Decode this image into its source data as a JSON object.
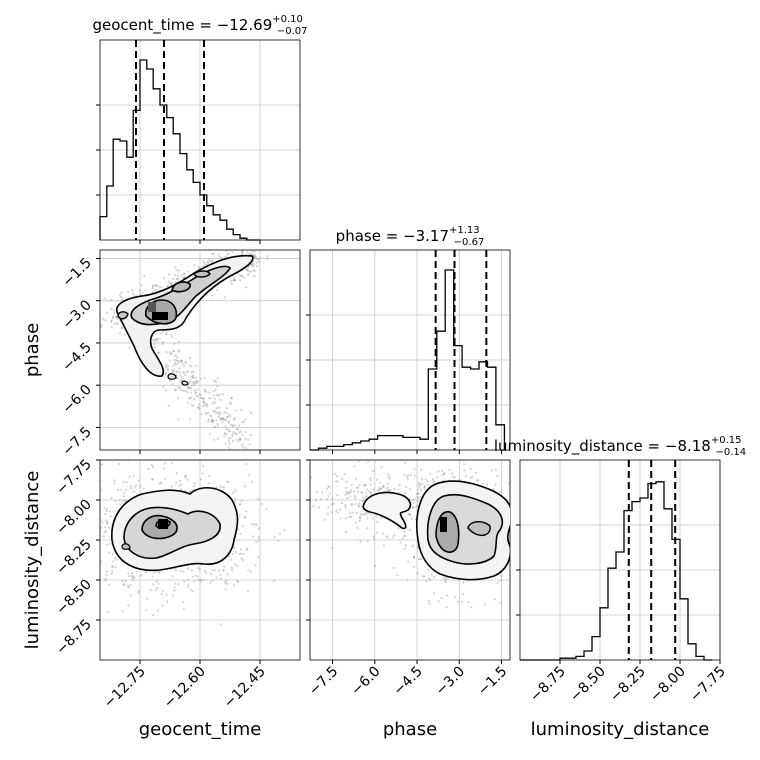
{
  "chart_data": {
    "type": "corner",
    "parameters": [
      "geocent_time",
      "phase",
      "luminosity_distance"
    ],
    "axis_labels": {
      "geocent_time": "geocent_time",
      "phase": "phase",
      "luminosity_distance": "luminosity_distance"
    },
    "ranges": {
      "geocent_time": [
        -12.85,
        -12.35
      ],
      "phase": [
        -8.3,
        -1.2
      ],
      "luminosity_distance": [
        -9.0,
        -7.75
      ]
    },
    "ticks": {
      "geocent_time": {
        "values": [
          -12.75,
          -12.6,
          -12.45
        ],
        "labels": [
          "−12.75",
          "−12.60",
          "−12.45"
        ]
      },
      "phase": {
        "values": [
          -7.5,
          -6.0,
          -4.5,
          -3.0,
          -1.5
        ],
        "labels": [
          "−7.5",
          "−6.0",
          "−4.5",
          "−3.0",
          "−1.5"
        ]
      },
      "luminosity_distance": {
        "values": [
          -8.75,
          -8.5,
          -8.25,
          -8.0,
          -7.75
        ],
        "labels": [
          "−8.75",
          "−8.50",
          "−8.25",
          "−8.00",
          "−7.75"
        ]
      }
    },
    "y_tick_labels": {
      "phase": {
        "values": [
          -1.5,
          -3.0,
          -4.5,
          -6.0,
          -7.5
        ],
        "labels": [
          "−1.5",
          "−3.0",
          "−4.5",
          "−6.0",
          "−7.5"
        ]
      },
      "luminosity_distance": {
        "values": [
          -7.75,
          -8.0,
          -8.25,
          -8.5,
          -8.75
        ],
        "labels": [
          "−7.75",
          "−8.00",
          "−8.25",
          "−8.50",
          "−8.75"
        ]
      }
    },
    "titles": [
      {
        "param": "geocent_time",
        "prefix": "geocent_time = −12.69",
        "plus": "+0.10",
        "minus": "−0.07"
      },
      {
        "param": "phase",
        "prefix": "phase = −3.17",
        "plus": "+1.13",
        "minus": "−0.67"
      },
      {
        "param": "luminosity_distance",
        "prefix": "luminosity_distance = −8.18",
        "plus": "+0.15",
        "minus": "−0.14"
      }
    ],
    "quantiles": {
      "geocent_time": [
        -12.76,
        -12.69,
        -12.59
      ],
      "phase": [
        -3.84,
        -3.17,
        -2.04
      ],
      "luminosity_distance": [
        -8.32,
        -8.18,
        -8.03
      ]
    },
    "histograms": {
      "geocent_time": {
        "edges": [
          -12.85,
          -12.833,
          -12.817,
          -12.8,
          -12.783,
          -12.767,
          -12.75,
          -12.733,
          -12.717,
          -12.7,
          -12.683,
          -12.667,
          -12.65,
          -12.633,
          -12.617,
          -12.6,
          -12.583,
          -12.567,
          -12.55,
          -12.533,
          -12.517,
          -12.5,
          -12.483,
          -12.467,
          -12.45
        ],
        "counts": [
          0.13,
          0.3,
          0.56,
          0.55,
          0.46,
          0.72,
          1.0,
          0.95,
          0.84,
          0.75,
          0.68,
          0.59,
          0.48,
          0.39,
          0.32,
          0.25,
          0.19,
          0.14,
          0.11,
          0.06,
          0.03,
          0.01,
          0.0,
          0.0
        ]
      },
      "phase": {
        "edges": [
          -8.3,
          -8.0,
          -7.7,
          -7.4,
          -7.1,
          -6.8,
          -6.5,
          -6.2,
          -5.9,
          -5.6,
          -5.3,
          -5.0,
          -4.7,
          -4.4,
          -4.1,
          -3.8,
          -3.5,
          -3.2,
          -2.9,
          -2.6,
          -2.3,
          -2.0,
          -1.7,
          -1.4
        ],
        "counts": [
          0.0,
          0.01,
          0.02,
          0.02,
          0.03,
          0.04,
          0.05,
          0.06,
          0.08,
          0.08,
          0.08,
          0.07,
          0.07,
          0.06,
          0.45,
          0.66,
          1.0,
          0.58,
          0.46,
          0.45,
          0.49,
          0.46,
          0.14
        ]
      },
      "luminosity_distance": {
        "edges": [
          -9.0,
          -8.95,
          -8.9,
          -8.85,
          -8.8,
          -8.75,
          -8.7,
          -8.65,
          -8.6,
          -8.55,
          -8.5,
          -8.45,
          -8.4,
          -8.35,
          -8.3,
          -8.25,
          -8.2,
          -8.15,
          -8.1,
          -8.05,
          -8.0,
          -7.95,
          -7.9,
          -7.85,
          -7.8
        ],
        "counts": [
          0.0,
          0.0,
          0.0,
          0.0,
          0.0,
          0.01,
          0.01,
          0.02,
          0.05,
          0.13,
          0.29,
          0.51,
          0.6,
          0.83,
          0.88,
          0.9,
          0.98,
          0.99,
          0.84,
          0.67,
          0.34,
          0.09,
          0.02,
          0.0
        ]
      }
    },
    "grid": true,
    "scatter_color": "#808080",
    "contour_color": "#000000",
    "quantile_line_style": "dashed"
  }
}
